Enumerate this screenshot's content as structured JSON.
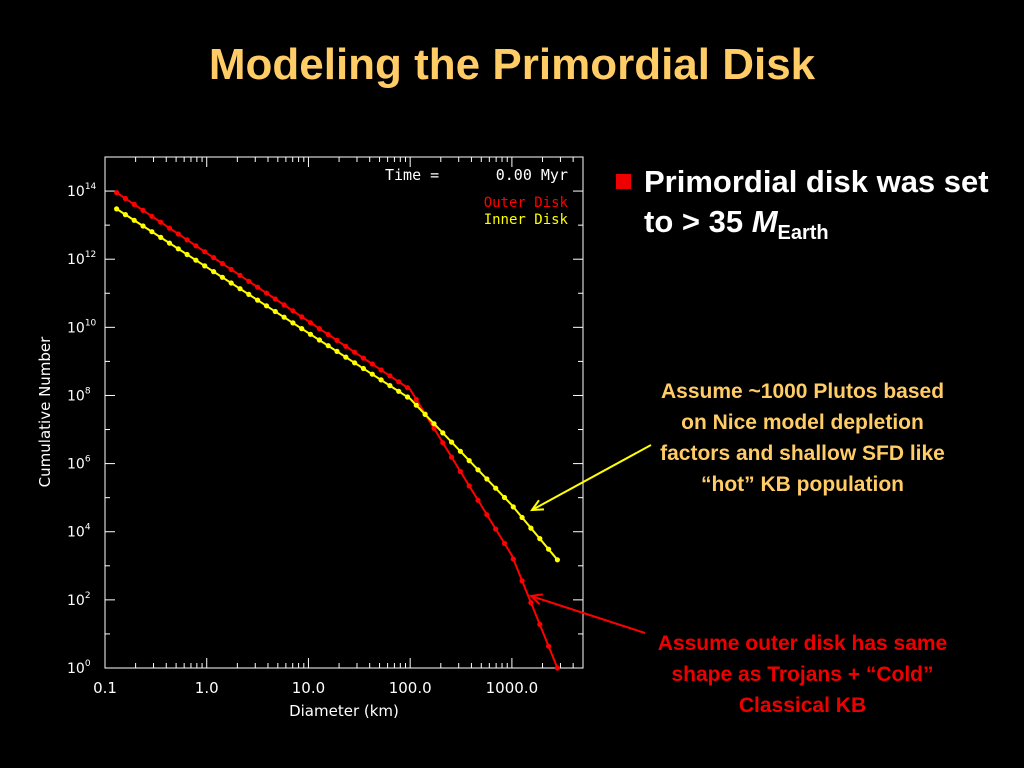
{
  "slide": {
    "title": "Modeling the Primordial Disk",
    "bullet": {
      "pre": "Primordial disk was set to > 35 ",
      "m": "M",
      "sub": "Earth"
    },
    "note_yellow": "Assume ~1000 Plutos based on Nice model depletion factors and shallow SFD like “hot” KB population",
    "note_red": "Assume outer disk has same shape as Trojans + “Cold” Classical KB",
    "colors": {
      "title": "#ffcc66",
      "bullet_square": "#ee0000",
      "outer": "#ff0000",
      "inner": "#ffff00"
    }
  },
  "chart_data": {
    "type": "line",
    "xlabel": "Diameter (km)",
    "ylabel": "Cumulative Number",
    "xscale": "log",
    "yscale": "log",
    "xlim": [
      0.1,
      5000
    ],
    "ylim": [
      1,
      1000000000000000.0
    ],
    "x_ticks": [
      "0.1",
      "1.0",
      "10.0",
      "100.0",
      "1000.0"
    ],
    "y_ticks": [
      {
        "base": "10",
        "exp": "0"
      },
      {
        "base": "10",
        "exp": "2"
      },
      {
        "base": "10",
        "exp": "4"
      },
      {
        "base": "10",
        "exp": "6"
      },
      {
        "base": "10",
        "exp": "8"
      },
      {
        "base": "10",
        "exp": "10"
      },
      {
        "base": "10",
        "exp": "12"
      },
      {
        "base": "10",
        "exp": "14"
      }
    ],
    "time_label": "Time =",
    "time_value": "0.00 Myr",
    "series": [
      {
        "name": "Outer Disk",
        "color": "#ff0000",
        "points": [
          [
            0.13,
            90000000000000.0
          ],
          [
            100,
            150000000.0
          ],
          [
            1000,
            2000.0
          ],
          [
            2800,
            1
          ]
        ]
      },
      {
        "name": "Inner Disk",
        "color": "#ffff00",
        "points": [
          [
            0.13,
            30000000000000.0
          ],
          [
            100,
            80000000.0
          ],
          [
            1000,
            60000.0
          ],
          [
            2800,
            1500.0
          ]
        ]
      }
    ]
  }
}
